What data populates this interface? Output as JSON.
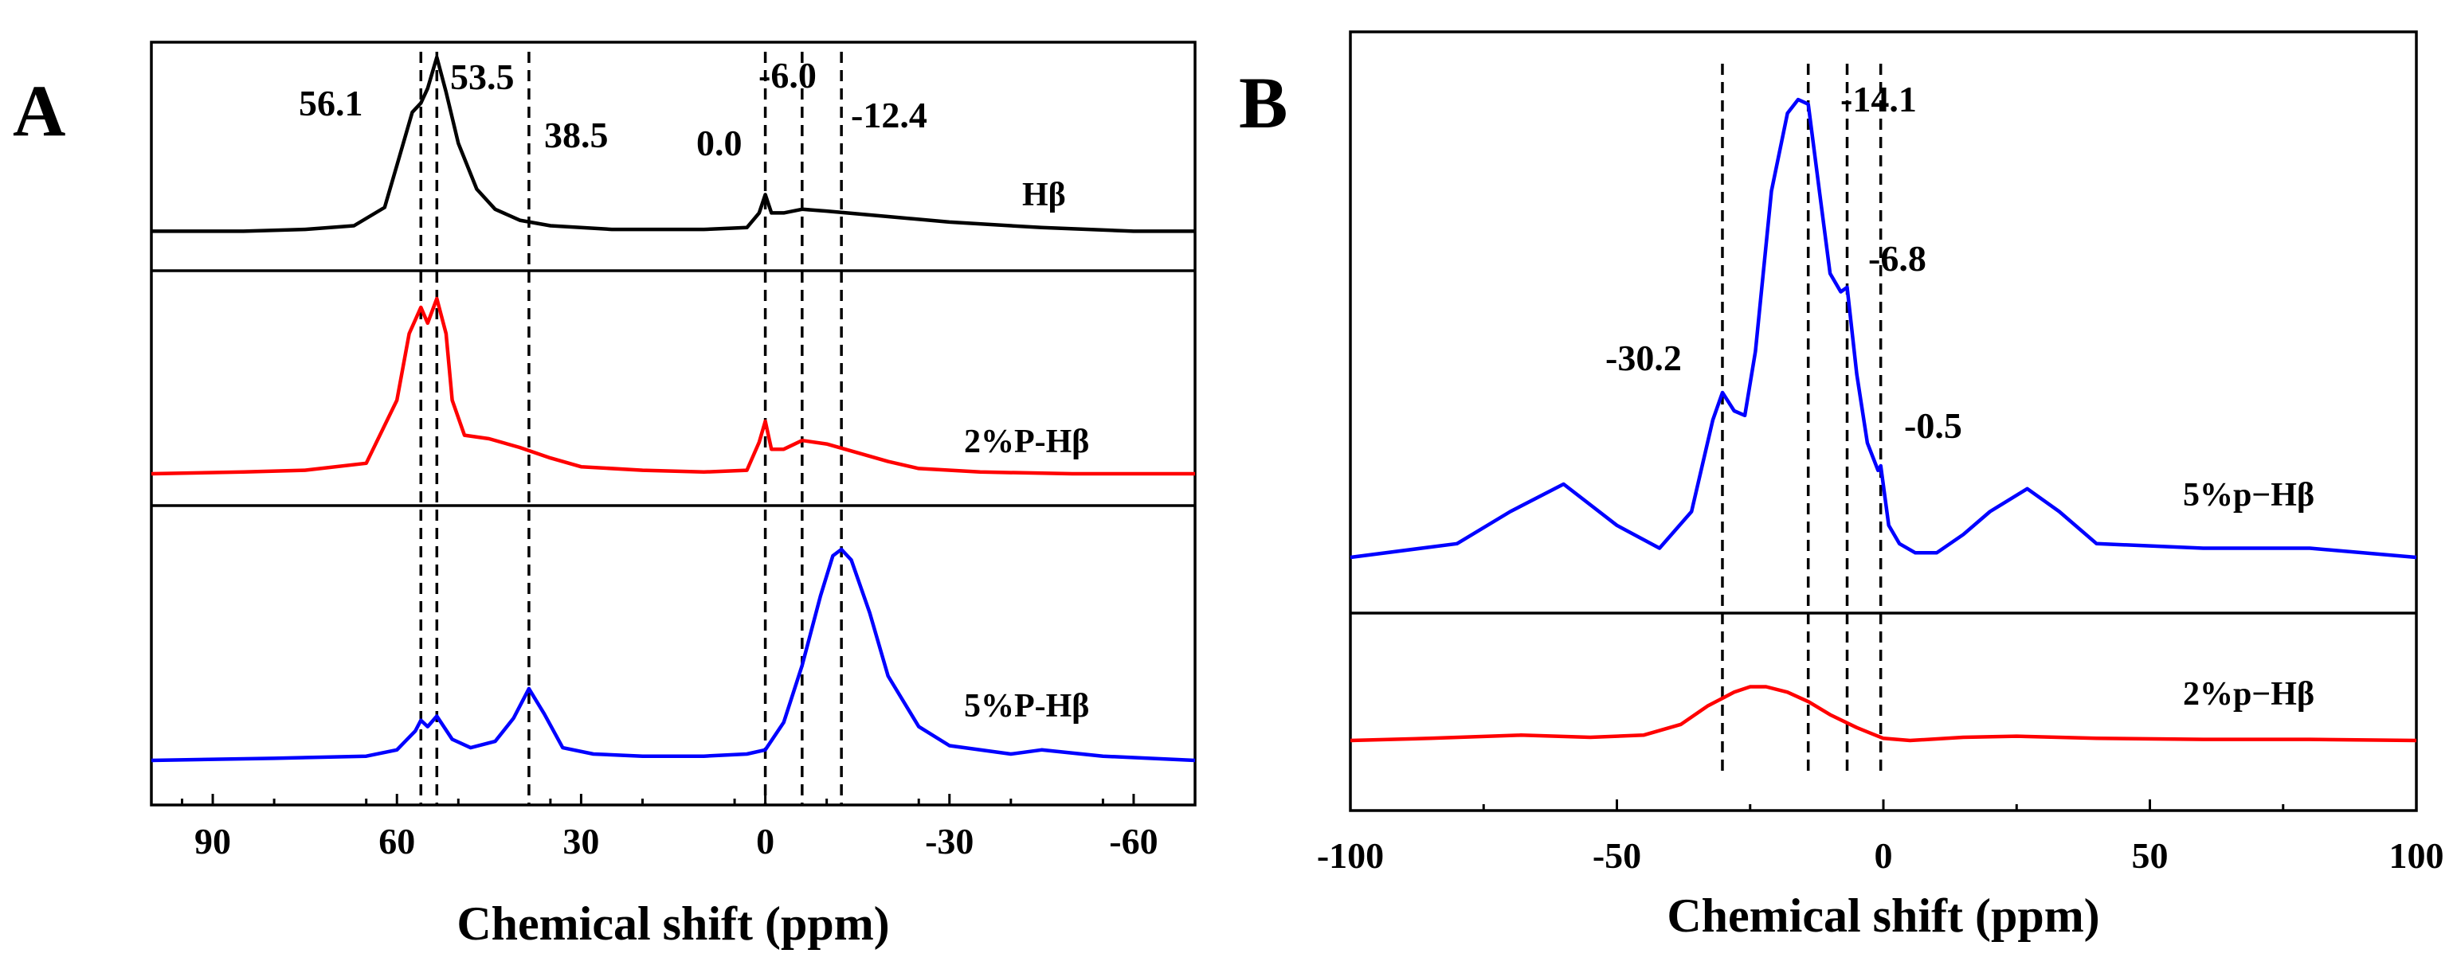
{
  "chart_data": [
    {
      "type": "line",
      "panel_label": "A",
      "xlabel": "Chemical shift (ppm)",
      "ylabel": "",
      "xlim": [
        100,
        -70
      ],
      "x_ticks": [
        90,
        60,
        30,
        0,
        -30,
        -60
      ],
      "x_tick_labels": [
        "90",
        "60",
        "30",
        "0",
        "-30",
        "-60"
      ],
      "reference_lines": [
        56.1,
        53.5,
        38.5,
        0.0,
        -6.0,
        -12.4
      ],
      "peak_labels": [
        "56.1",
        "53.5",
        "38.5",
        "0.0",
        "-6.0",
        "-12.4"
      ],
      "series": [
        {
          "name": "Hβ",
          "color": "#000000",
          "x": [
            100,
            85,
            75,
            67,
            62,
            60,
            57.5,
            56.1,
            55,
            53.5,
            52,
            50,
            47,
            44,
            40,
            35,
            25,
            10,
            3,
            1,
            0,
            -1,
            -3,
            -6,
            -10,
            -20,
            -30,
            -45,
            -60,
            -70
          ],
          "y": [
            0.02,
            0.02,
            0.03,
            0.05,
            0.15,
            0.38,
            0.67,
            0.72,
            0.8,
            0.97,
            0.78,
            0.5,
            0.25,
            0.14,
            0.08,
            0.05,
            0.03,
            0.03,
            0.04,
            0.12,
            0.22,
            0.12,
            0.12,
            0.14,
            0.13,
            0.1,
            0.07,
            0.04,
            0.02,
            0.02
          ]
        },
        {
          "name": "2%P-Hβ",
          "color": "#ff0000",
          "x": [
            100,
            85,
            75,
            65,
            60,
            58,
            56.1,
            55,
            53.5,
            52,
            51,
            49,
            45,
            40,
            35,
            30,
            20,
            10,
            3,
            1,
            0,
            -1,
            -3,
            -6,
            -10,
            -15,
            -20,
            -25,
            -35,
            -50,
            -70
          ],
          "y": [
            0.0,
            0.01,
            0.02,
            0.06,
            0.42,
            0.8,
            0.95,
            0.86,
            1.0,
            0.8,
            0.42,
            0.22,
            0.2,
            0.15,
            0.09,
            0.04,
            0.02,
            0.01,
            0.02,
            0.18,
            0.3,
            0.14,
            0.14,
            0.19,
            0.17,
            0.12,
            0.07,
            0.03,
            0.01,
            0.0,
            0.0
          ]
        },
        {
          "name": "5%P-Hβ",
          "color": "#0000ff",
          "x": [
            100,
            80,
            65,
            60,
            57,
            56.1,
            55,
            53.5,
            51,
            48,
            44,
            41,
            38.5,
            36,
            33,
            28,
            20,
            10,
            3,
            0,
            -3,
            -6,
            -9,
            -11,
            -12.4,
            -14,
            -17,
            -20,
            -25,
            -30,
            -40,
            -45,
            -55,
            -70
          ],
          "y": [
            0.0,
            0.01,
            0.02,
            0.05,
            0.14,
            0.19,
            0.16,
            0.21,
            0.1,
            0.06,
            0.09,
            0.2,
            0.34,
            0.22,
            0.06,
            0.03,
            0.02,
            0.02,
            0.03,
            0.05,
            0.18,
            0.45,
            0.78,
            0.97,
            1.0,
            0.95,
            0.7,
            0.4,
            0.16,
            0.07,
            0.03,
            0.05,
            0.02,
            0.0
          ]
        }
      ],
      "series_labels": [
        "Hβ",
        "2%P-Hβ",
        "5%P-Hβ"
      ]
    },
    {
      "type": "line",
      "panel_label": "B",
      "xlabel": "Chemical shift (ppm)",
      "ylabel": "",
      "xlim": [
        -100,
        100
      ],
      "x_ticks": [
        -100,
        -50,
        0,
        50,
        100
      ],
      "x_tick_labels": [
        "-100",
        "-50",
        "0",
        "50",
        "100"
      ],
      "reference_lines": [
        -30.2,
        -14.1,
        -6.8,
        -0.5
      ],
      "peak_labels": [
        "-14.1",
        "-6.8",
        "-30.2",
        "-0.5"
      ],
      "series": [
        {
          "name": "5%p−Hβ",
          "color": "#0000ff",
          "x": [
            -100,
            -80,
            -70,
            -60,
            -50,
            -42,
            -36,
            -32,
            -30.2,
            -28,
            -26,
            -24,
            -21,
            -18,
            -16,
            -14.1,
            -12,
            -10,
            -8,
            -6.8,
            -5,
            -3,
            -1,
            -0.5,
            1,
            3,
            6,
            10,
            15,
            20,
            27,
            33,
            40,
            60,
            80,
            100
          ],
          "y": [
            0.0,
            0.03,
            0.1,
            0.16,
            0.07,
            0.02,
            0.1,
            0.3,
            0.36,
            0.32,
            0.31,
            0.45,
            0.8,
            0.97,
            1.0,
            0.99,
            0.8,
            0.62,
            0.58,
            0.59,
            0.4,
            0.25,
            0.19,
            0.2,
            0.07,
            0.03,
            0.01,
            0.01,
            0.05,
            0.1,
            0.15,
            0.1,
            0.03,
            0.02,
            0.02,
            0.0
          ]
        },
        {
          "name": "2%p−Hβ",
          "color": "#ff0000",
          "x": [
            -100,
            -85,
            -68,
            -55,
            -45,
            -38,
            -33,
            -28,
            -25,
            -22,
            -18,
            -14,
            -10,
            -5,
            -2,
            0,
            5,
            15,
            25,
            40,
            60,
            80,
            100
          ],
          "y": [
            0.0,
            0.02,
            0.05,
            0.03,
            0.05,
            0.15,
            0.32,
            0.45,
            0.5,
            0.5,
            0.45,
            0.36,
            0.24,
            0.12,
            0.06,
            0.02,
            0.0,
            0.03,
            0.04,
            0.02,
            0.01,
            0.01,
            0.0
          ]
        }
      ],
      "series_labels": [
        "5%p−Hβ",
        "2%p−Hβ"
      ]
    }
  ]
}
